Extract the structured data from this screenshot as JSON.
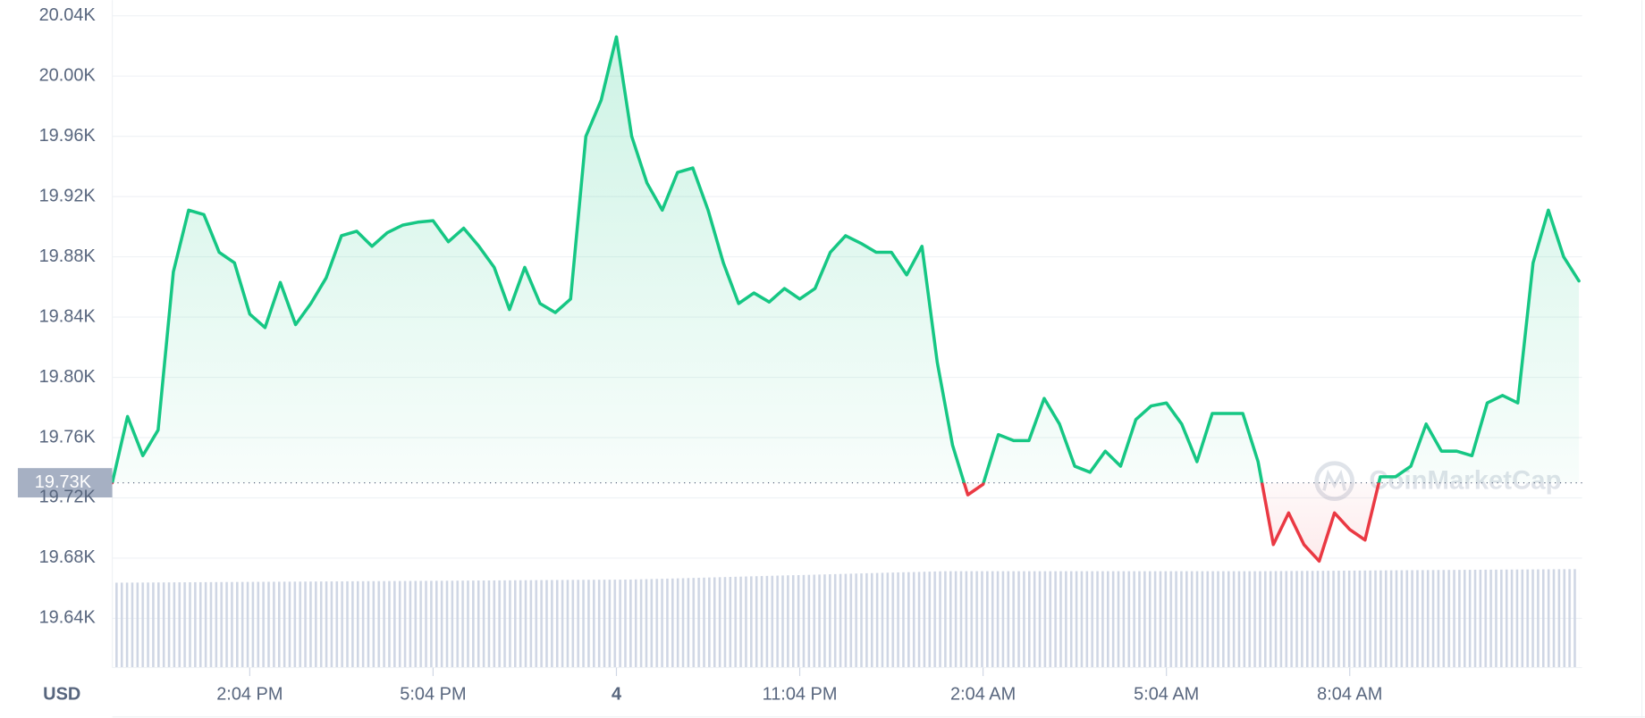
{
  "chart_data": {
    "type": "line",
    "categories": [
      null,
      null,
      null,
      null,
      null,
      null,
      null,
      null,
      null,
      "2:04 PM",
      null,
      null,
      null,
      null,
      null,
      null,
      null,
      null,
      null,
      null,
      null,
      "5:04 PM",
      null,
      null,
      null,
      null,
      null,
      null,
      null,
      null,
      null,
      null,
      null,
      "4",
      null,
      null,
      null,
      null,
      null,
      null,
      null,
      null,
      null,
      null,
      null,
      "11:04 PM",
      null,
      null,
      null,
      null,
      null,
      null,
      null,
      null,
      null,
      null,
      null,
      "2:04 AM",
      null,
      null,
      null,
      null,
      null,
      null,
      null,
      null,
      null,
      null,
      null,
      "5:04 AM",
      null,
      null,
      null,
      null,
      null,
      null,
      null,
      null,
      null,
      null,
      null,
      "8:04 AM",
      null,
      null,
      null,
      null,
      null,
      null,
      null,
      null,
      null,
      null,
      null,
      null,
      null,
      null,
      null
    ],
    "values": [
      19730,
      19774,
      19748,
      19765,
      19870,
      19911,
      19908,
      19883,
      19876,
      19842,
      19833,
      19863,
      19835,
      19849,
      19866,
      19894,
      19897,
      19887,
      19896,
      19901,
      19903,
      19904,
      19890,
      19899,
      19887,
      19873,
      19845,
      19873,
      19849,
      19843,
      19852,
      19960,
      19984,
      20026,
      19960,
      19929,
      19911,
      19936,
      19939,
      19911,
      19876,
      19849,
      19856,
      19850,
      19859,
      19852,
      19859,
      19883,
      19894,
      19889,
      19883,
      19883,
      19868,
      19887,
      19810,
      19755,
      19722,
      19729,
      19762,
      19758,
      19758,
      19786,
      19769,
      19741,
      19737,
      19751,
      19741,
      19772,
      19781,
      19783,
      19769,
      19744,
      19776,
      19776,
      19776,
      19744,
      19689,
      19710,
      19689,
      19678,
      19710,
      19699,
      19692,
      19734,
      19734,
      19741,
      19769,
      19751,
      19751,
      19748,
      19783,
      19788,
      19783,
      19876,
      19911,
      19880,
      19864
    ],
    "color_up": "#16c784",
    "color_down": "#ea3943",
    "reference": {
      "value": 19730,
      "label": "19.73K"
    },
    "ylim": [
      19610,
      20040
    ],
    "yticks": [
      {
        "value": 19640,
        "label": "19.64K"
      },
      {
        "value": 19680,
        "label": "19.68K"
      },
      {
        "value": 19720,
        "label": "19.72K"
      },
      {
        "value": 19760,
        "label": "19.76K"
      },
      {
        "value": 19800,
        "label": "19.80K"
      },
      {
        "value": 19840,
        "label": "19.84K"
      },
      {
        "value": 19880,
        "label": "19.88K"
      },
      {
        "value": 19920,
        "label": "19.92K"
      },
      {
        "value": 19960,
        "label": "19.96K"
      },
      {
        "value": 20000,
        "label": "20.00K"
      },
      {
        "value": 20040,
        "label": "20.04K"
      }
    ],
    "grid": true,
    "y_axis_label": "USD",
    "watermark": "CoinMarketCap"
  }
}
